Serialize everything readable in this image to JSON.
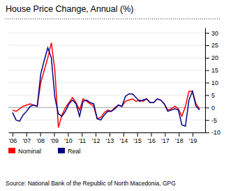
{
  "chart_data": {
    "type": "line",
    "title": "House Price Change, Annual (%)",
    "annotations": [
      "Source: National Bank of the Republic of North Macedonia, GPG"
    ],
    "x": [
      2006,
      2006.254717,
      2006.509434,
      2006.764151,
      2007.018868,
      2007.273585,
      2007.528302,
      2007.783019,
      2008.037736,
      2008.292453,
      2008.54717,
      2008.801887,
      2009.056604,
      2009.311321,
      2009.566038,
      2009.820755,
      2010.075472,
      2010.330189,
      2010.584906,
      2010.839623,
      2011.09434,
      2011.349057,
      2011.603774,
      2011.858491,
      2012.113208,
      2012.367925,
      2012.622642,
      2012.877358,
      2013.132075,
      2013.386792,
      2013.641509,
      2013.896226,
      2014.150943,
      2014.40566,
      2014.660377,
      2014.915094,
      2015.169811,
      2015.424528,
      2015.679245,
      2015.933962,
      2016.188679,
      2016.443396,
      2016.698113,
      2016.95283,
      2017.207547,
      2017.462264,
      2017.716981,
      2017.971698,
      2018.226415,
      2018.481132,
      2018.735849,
      2018.990566,
      2019.245283,
      2019.5
    ],
    "xlim": [
      2005.7,
      2019.9
    ],
    "xticks": [
      {
        "value": 2006,
        "label": "'06"
      },
      {
        "value": 2007,
        "label": "'07"
      },
      {
        "value": 2008,
        "label": "'08"
      },
      {
        "value": 2009,
        "label": "'09"
      },
      {
        "value": 2010,
        "label": "'10"
      },
      {
        "value": 2011,
        "label": "'11"
      },
      {
        "value": 2012,
        "label": "'12"
      },
      {
        "value": 2013,
        "label": "'13"
      },
      {
        "value": 2014,
        "label": "'14"
      },
      {
        "value": 2015,
        "label": "'15"
      },
      {
        "value": 2016,
        "label": "'16"
      },
      {
        "value": 2017,
        "label": "'17"
      },
      {
        "value": 2018,
        "label": "'18"
      },
      {
        "value": 2019,
        "label": "'19"
      }
    ],
    "ylim": [
      -10,
      32
    ],
    "yticks": [
      -10,
      -5,
      0,
      5,
      10,
      15,
      20,
      25,
      30
    ],
    "grid": true,
    "legend": "bottom",
    "series": [
      {
        "name": "Nominal",
        "color": "#ff0000",
        "values": [
          -1.0,
          -1.5,
          -0.5,
          0.5,
          1.0,
          1.5,
          1.0,
          0.5,
          10.0,
          15.0,
          20.0,
          26.0,
          15.0,
          -8.0,
          -3.0,
          0.0,
          2.0,
          4.0,
          2.0,
          -1.0,
          3.5,
          2.5,
          1.5,
          0.5,
          -4.5,
          -4.0,
          -2.0,
          -1.0,
          -1.5,
          0.0,
          1.0,
          0.5,
          2.5,
          3.0,
          3.5,
          2.5,
          3.0,
          2.5,
          3.5,
          2.0,
          2.0,
          3.5,
          3.0,
          1.5,
          -1.0,
          -0.5,
          0.5,
          -0.5,
          -3.5,
          0.5,
          6.5,
          6.5,
          1.5,
          -0.5
        ]
      },
      {
        "name": "Real",
        "color": "#00008b",
        "values": [
          -2.0,
          -5.0,
          -5.5,
          -3.0,
          -1.5,
          0.5,
          1.0,
          0.5,
          13.5,
          19.0,
          24.0,
          20.0,
          4.0,
          -2.5,
          -3.5,
          -1.5,
          1.5,
          3.0,
          1.5,
          -3.5,
          2.5,
          3.0,
          2.0,
          1.5,
          -4.5,
          -5.0,
          -3.0,
          -1.5,
          -1.5,
          -0.5,
          1.0,
          0.5,
          4.5,
          5.5,
          5.5,
          4.0,
          2.5,
          3.0,
          3.5,
          2.0,
          2.0,
          3.5,
          3.0,
          1.5,
          -1.5,
          -1.0,
          -0.5,
          -1.0,
          -7.0,
          -7.5,
          3.0,
          6.5,
          0.5,
          -1.0
        ]
      }
    ]
  }
}
